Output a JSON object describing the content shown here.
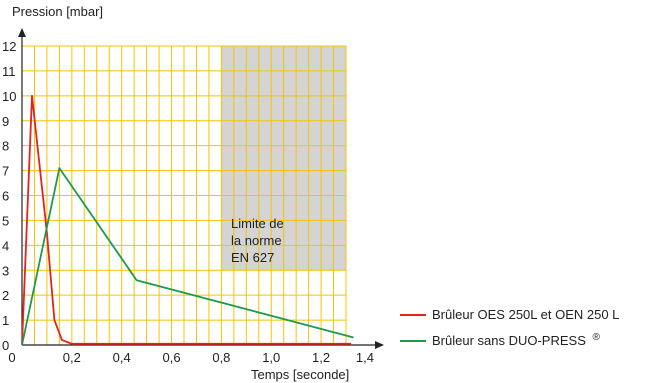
{
  "chart_data": {
    "type": "line",
    "ylabel": "Pression [mbar]",
    "xlabel": "Temps [seconde]",
    "xlim": [
      0,
      1.45
    ],
    "ylim": [
      0,
      12
    ],
    "x_ticks": [
      "0",
      "0,2",
      "0,4",
      "0,6",
      "0,8",
      "1,0",
      "1,2",
      "1,4"
    ],
    "y_ticks": [
      "0",
      "1",
      "2",
      "3",
      "4",
      "5",
      "6",
      "7",
      "8",
      "9",
      "10",
      "11",
      "12"
    ],
    "grid": true,
    "grid_color": "#f5c400",
    "zone": {
      "label_lines": [
        "Limite de",
        "la norme",
        "EN 627"
      ],
      "x_range": [
        0.8,
        1.3
      ],
      "y_range": [
        3,
        12
      ],
      "color": "#d4d4d4"
    },
    "series": [
      {
        "name": "Brûleur OES 250L et OEN 250 L",
        "color": "#e1251b",
        "x": [
          0,
          0.04,
          0.1,
          0.13,
          0.16,
          0.2,
          1.32
        ],
        "y": [
          0,
          10,
          4.5,
          1.0,
          0.2,
          0.05,
          0.05
        ]
      },
      {
        "name": "Brûleur sans DUO-PRESS",
        "name_superscript": "®",
        "color": "#1f9a4c",
        "x": [
          0,
          0.15,
          0.46,
          1.33
        ],
        "y": [
          0,
          7.1,
          2.6,
          0.3
        ]
      }
    ],
    "legend_position": "right"
  }
}
